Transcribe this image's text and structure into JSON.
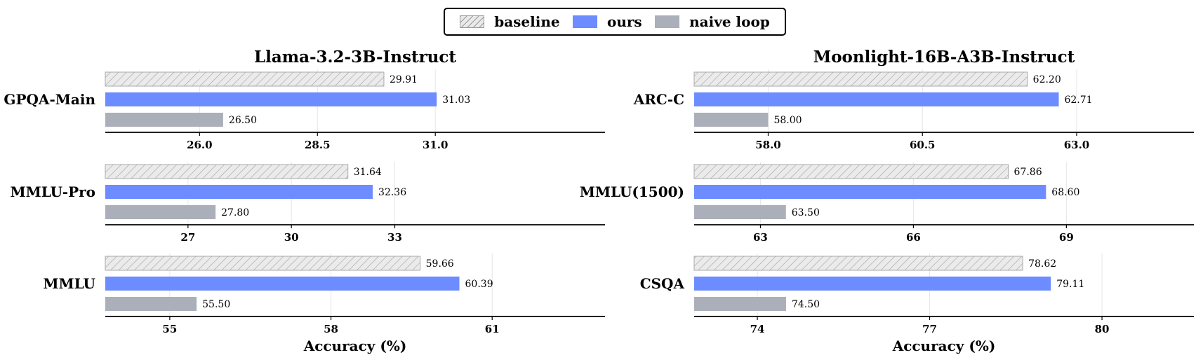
{
  "legend": {
    "placement": "top-center",
    "items": [
      {
        "label": "baseline",
        "color": "#e8e8e8",
        "hatch": true
      },
      {
        "label": "ours",
        "color": "#6c8cff",
        "hatch": false
      },
      {
        "label": "naive loop",
        "color": "#abafba",
        "hatch": false
      }
    ]
  },
  "chart_data": [
    {
      "type": "bar",
      "orientation": "horizontal",
      "title": "Llama-3.2-3B-Instruct",
      "category": "GPQA-Main",
      "xlabel": "",
      "xlim": [
        24.0,
        34.6
      ],
      "ticks": [
        "26.0",
        "28.5",
        "31.0"
      ],
      "tick_values": [
        26.0,
        28.5,
        31.0
      ],
      "series": [
        {
          "name": "baseline",
          "value": 29.91,
          "label": "29.91"
        },
        {
          "name": "ours",
          "value": 31.03,
          "label": "31.03"
        },
        {
          "name": "naive loop",
          "value": 26.5,
          "label": "26.50"
        }
      ]
    },
    {
      "type": "bar",
      "orientation": "horizontal",
      "title": "",
      "category": "MMLU-Pro",
      "xlabel": "",
      "xlim": [
        24.6,
        39.1
      ],
      "ticks": [
        "27",
        "30",
        "33"
      ],
      "tick_values": [
        27,
        30,
        33
      ],
      "series": [
        {
          "name": "baseline",
          "value": 31.64,
          "label": "31.64"
        },
        {
          "name": "ours",
          "value": 32.36,
          "label": "32.36"
        },
        {
          "name": "naive loop",
          "value": 27.8,
          "label": "27.80"
        }
      ]
    },
    {
      "type": "bar",
      "orientation": "horizontal",
      "title": "",
      "category": "MMLU",
      "xlabel": "Accuracy (%)",
      "xlim": [
        53.8,
        63.1
      ],
      "ticks": [
        "55",
        "58",
        "61"
      ],
      "tick_values": [
        55,
        58,
        61
      ],
      "series": [
        {
          "name": "baseline",
          "value": 59.66,
          "label": "59.66"
        },
        {
          "name": "ours",
          "value": 60.39,
          "label": "60.39"
        },
        {
          "name": "naive loop",
          "value": 55.5,
          "label": "55.50"
        }
      ]
    },
    {
      "type": "bar",
      "orientation": "horizontal",
      "title": "Moonlight-16B-A3B-Instruct",
      "category": "ARC-C",
      "xlabel": "",
      "xlim": [
        56.8,
        64.9
      ],
      "ticks": [
        "58.0",
        "60.5",
        "63.0"
      ],
      "tick_values": [
        58.0,
        60.5,
        63.0
      ],
      "series": [
        {
          "name": "baseline",
          "value": 62.2,
          "label": "62.20"
        },
        {
          "name": "ours",
          "value": 62.71,
          "label": "62.71"
        },
        {
          "name": "naive loop",
          "value": 58.0,
          "label": "58.00"
        }
      ]
    },
    {
      "type": "bar",
      "orientation": "horizontal",
      "title": "",
      "category": "MMLU(1500)",
      "xlabel": "",
      "xlim": [
        61.7,
        71.5
      ],
      "ticks": [
        "63",
        "66",
        "69"
      ],
      "tick_values": [
        63,
        66,
        69
      ],
      "series": [
        {
          "name": "baseline",
          "value": 67.86,
          "label": "67.86"
        },
        {
          "name": "ours",
          "value": 68.6,
          "label": "68.60"
        },
        {
          "name": "naive loop",
          "value": 63.5,
          "label": "63.50"
        }
      ]
    },
    {
      "type": "bar",
      "orientation": "horizontal",
      "title": "",
      "category": "CSQA",
      "xlabel": "Accuracy (%)",
      "xlim": [
        72.9,
        81.6
      ],
      "ticks": [
        "74",
        "77",
        "80"
      ],
      "tick_values": [
        74,
        77,
        80
      ],
      "series": [
        {
          "name": "baseline",
          "value": 78.62,
          "label": "78.62"
        },
        {
          "name": "ours",
          "value": 79.11,
          "label": "79.11"
        },
        {
          "name": "naive loop",
          "value": 74.5,
          "label": "74.50"
        }
      ]
    }
  ]
}
